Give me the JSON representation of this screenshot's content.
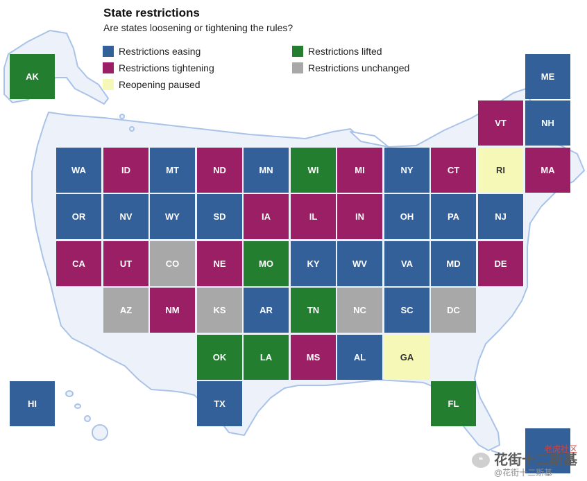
{
  "title": "State restrictions",
  "subtitle": "Are states loosening or tightening the rules?",
  "colors": {
    "easing": "#34609a",
    "tightening": "#9a1f64",
    "paused": "#f6f8b7",
    "lifted": "#237e2f",
    "unchanged": "#a8a8a8",
    "map_fill": "#edf2fa",
    "map_stroke": "#a9c3e8"
  },
  "legend": [
    {
      "status": "easing",
      "label": "Restrictions easing"
    },
    {
      "status": "tightening",
      "label": "Restrictions tightening"
    },
    {
      "status": "paused",
      "label": "Reopening paused"
    },
    {
      "status": "lifted",
      "label": "Restrictions lifted"
    },
    {
      "status": "unchanged",
      "label": "Restrictions unchanged"
    }
  ],
  "states": [
    {
      "abbr": "AK",
      "status": "lifted"
    },
    {
      "abbr": "ME",
      "status": "easing"
    },
    {
      "abbr": "VT",
      "status": "tightening"
    },
    {
      "abbr": "NH",
      "status": "easing"
    },
    {
      "abbr": "WA",
      "status": "easing"
    },
    {
      "abbr": "ID",
      "status": "tightening"
    },
    {
      "abbr": "MT",
      "status": "easing"
    },
    {
      "abbr": "ND",
      "status": "tightening"
    },
    {
      "abbr": "MN",
      "status": "easing"
    },
    {
      "abbr": "WI",
      "status": "lifted"
    },
    {
      "abbr": "MI",
      "status": "tightening"
    },
    {
      "abbr": "NY",
      "status": "easing"
    },
    {
      "abbr": "CT",
      "status": "tightening"
    },
    {
      "abbr": "RI",
      "status": "paused"
    },
    {
      "abbr": "MA",
      "status": "tightening"
    },
    {
      "abbr": "OR",
      "status": "easing"
    },
    {
      "abbr": "NV",
      "status": "easing"
    },
    {
      "abbr": "WY",
      "status": "easing"
    },
    {
      "abbr": "SD",
      "status": "easing"
    },
    {
      "abbr": "IA",
      "status": "tightening"
    },
    {
      "abbr": "IL",
      "status": "tightening"
    },
    {
      "abbr": "IN",
      "status": "tightening"
    },
    {
      "abbr": "OH",
      "status": "easing"
    },
    {
      "abbr": "PA",
      "status": "easing"
    },
    {
      "abbr": "NJ",
      "status": "easing"
    },
    {
      "abbr": "CA",
      "status": "tightening"
    },
    {
      "abbr": "UT",
      "status": "tightening"
    },
    {
      "abbr": "CO",
      "status": "unchanged"
    },
    {
      "abbr": "NE",
      "status": "tightening"
    },
    {
      "abbr": "MO",
      "status": "lifted"
    },
    {
      "abbr": "KY",
      "status": "easing"
    },
    {
      "abbr": "WV",
      "status": "easing"
    },
    {
      "abbr": "VA",
      "status": "easing"
    },
    {
      "abbr": "MD",
      "status": "easing"
    },
    {
      "abbr": "DE",
      "status": "tightening"
    },
    {
      "abbr": "AZ",
      "status": "unchanged"
    },
    {
      "abbr": "NM",
      "status": "tightening"
    },
    {
      "abbr": "KS",
      "status": "unchanged"
    },
    {
      "abbr": "AR",
      "status": "easing"
    },
    {
      "abbr": "TN",
      "status": "lifted"
    },
    {
      "abbr": "NC",
      "status": "unchanged"
    },
    {
      "abbr": "SC",
      "status": "easing"
    },
    {
      "abbr": "DC",
      "status": "unchanged"
    },
    {
      "abbr": "OK",
      "status": "lifted"
    },
    {
      "abbr": "LA",
      "status": "lifted"
    },
    {
      "abbr": "MS",
      "status": "tightening"
    },
    {
      "abbr": "AL",
      "status": "easing"
    },
    {
      "abbr": "GA",
      "status": "paused"
    },
    {
      "abbr": "HI",
      "status": "easing"
    },
    {
      "abbr": "TX",
      "status": "easing"
    },
    {
      "abbr": "FL",
      "status": "lifted"
    }
  ],
  "watermark": {
    "logo_text": "❝",
    "big": "花街十二斯基",
    "small": "@花街十二斯基",
    "corner": "老虎社区"
  }
}
